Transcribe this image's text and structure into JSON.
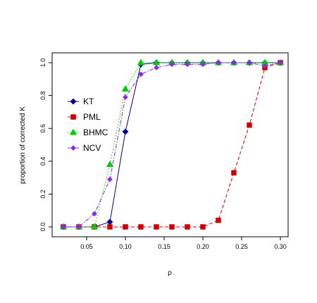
{
  "chart_data": {
    "type": "line",
    "title": "",
    "xlabel": "ρ",
    "ylabel": "proportion of corrected K",
    "xlim": [
      0.02,
      0.3
    ],
    "ylim": [
      0.0,
      1.0
    ],
    "xticks": [
      0.05,
      0.1,
      0.15,
      0.2,
      0.25,
      0.3
    ],
    "xtick_labels": [
      "0.05",
      "0.10",
      "0.15",
      "0.20",
      "0.25",
      "0.30"
    ],
    "yticks": [
      0.0,
      0.2,
      0.4,
      0.6,
      0.8,
      1.0
    ],
    "ytick_labels": [
      "0.0",
      "0.2",
      "0.4",
      "0.6",
      "0.8",
      "1.0"
    ],
    "grid": false,
    "legend_position": "left-middle",
    "x": [
      0.02,
      0.04,
      0.06,
      0.08,
      0.1,
      0.12,
      0.14,
      0.16,
      0.18,
      0.2,
      0.22,
      0.24,
      0.26,
      0.28,
      0.3
    ],
    "series": [
      {
        "name": "KT",
        "color": "#00008B",
        "marker": "diamond",
        "line_style": "solid",
        "values": [
          0.0,
          0.0,
          0.0,
          0.03,
          0.58,
          0.99,
          1.0,
          1.0,
          1.0,
          1.0,
          1.0,
          1.0,
          1.0,
          1.0,
          1.0
        ]
      },
      {
        "name": "PML",
        "color": "#CC0000",
        "marker": "square",
        "line_style": "dashed",
        "values": [
          0.0,
          0.0,
          0.0,
          0.0,
          0.0,
          0.0,
          0.0,
          0.0,
          0.0,
          0.0,
          0.04,
          0.33,
          0.62,
          0.97,
          1.0
        ]
      },
      {
        "name": "BHMC",
        "color": "#00CC00",
        "marker": "triangle",
        "line_style": "dotted",
        "values": [
          0.0,
          0.0,
          0.0,
          0.38,
          0.84,
          1.0,
          1.0,
          1.0,
          1.0,
          1.0,
          1.0,
          1.0,
          1.0,
          1.0,
          1.0
        ]
      },
      {
        "name": "NCV",
        "color": "#8A2BE2",
        "marker": "small-diamond",
        "line_style": "dashdot",
        "values": [
          0.0,
          0.0,
          0.08,
          0.29,
          0.79,
          0.93,
          0.97,
          0.99,
          0.99,
          0.99,
          1.0,
          1.0,
          1.0,
          0.98,
          1.0
        ]
      }
    ]
  }
}
